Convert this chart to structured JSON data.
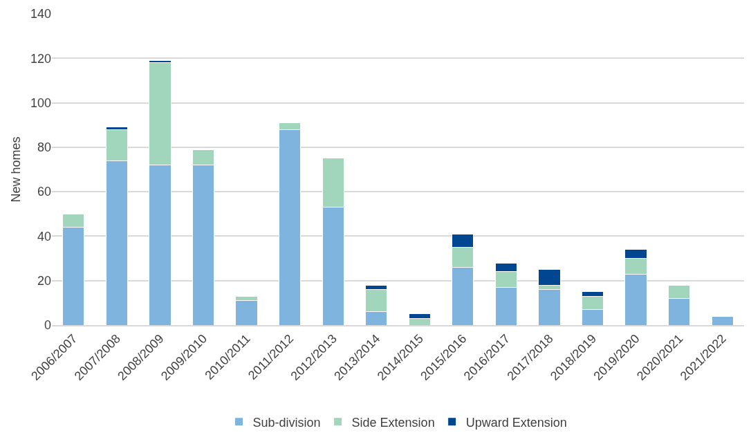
{
  "chart_data": {
    "type": "bar",
    "stacked": true,
    "ylabel": "New homes",
    "categories": [
      "2006/2007",
      "2007/2008",
      "2008/2009",
      "2009/2010",
      "2010/2011",
      "2011/2012",
      "2012/2013",
      "2013/2014",
      "2014/2015",
      "2015/2016",
      "2016/2017",
      "2017/2018",
      "2018/2019",
      "2019/2020",
      "2020/2021",
      "2021/2022"
    ],
    "series": [
      {
        "name": "Sub-division",
        "color": "#7fb4df",
        "values": [
          44,
          74,
          72,
          72,
          11,
          88,
          53,
          6,
          null,
          26,
          17,
          16,
          7,
          23,
          12,
          4
        ]
      },
      {
        "name": "Side Extension",
        "color": "#a1d6bd",
        "values": [
          6,
          14,
          46,
          7,
          2,
          3,
          22,
          10,
          3,
          9,
          7,
          2,
          6,
          7,
          6,
          null
        ]
      },
      {
        "name": "Upward Extension",
        "color": "#004691",
        "values": [
          null,
          1,
          1,
          null,
          null,
          null,
          null,
          2,
          2,
          6,
          4,
          7,
          2,
          4,
          null,
          null
        ]
      }
    ],
    "ylim": [
      0,
      140
    ],
    "yticks": [
      0,
      20,
      40,
      60,
      80,
      100,
      120,
      140
    ],
    "grid": "y",
    "legend": "bottom"
  }
}
